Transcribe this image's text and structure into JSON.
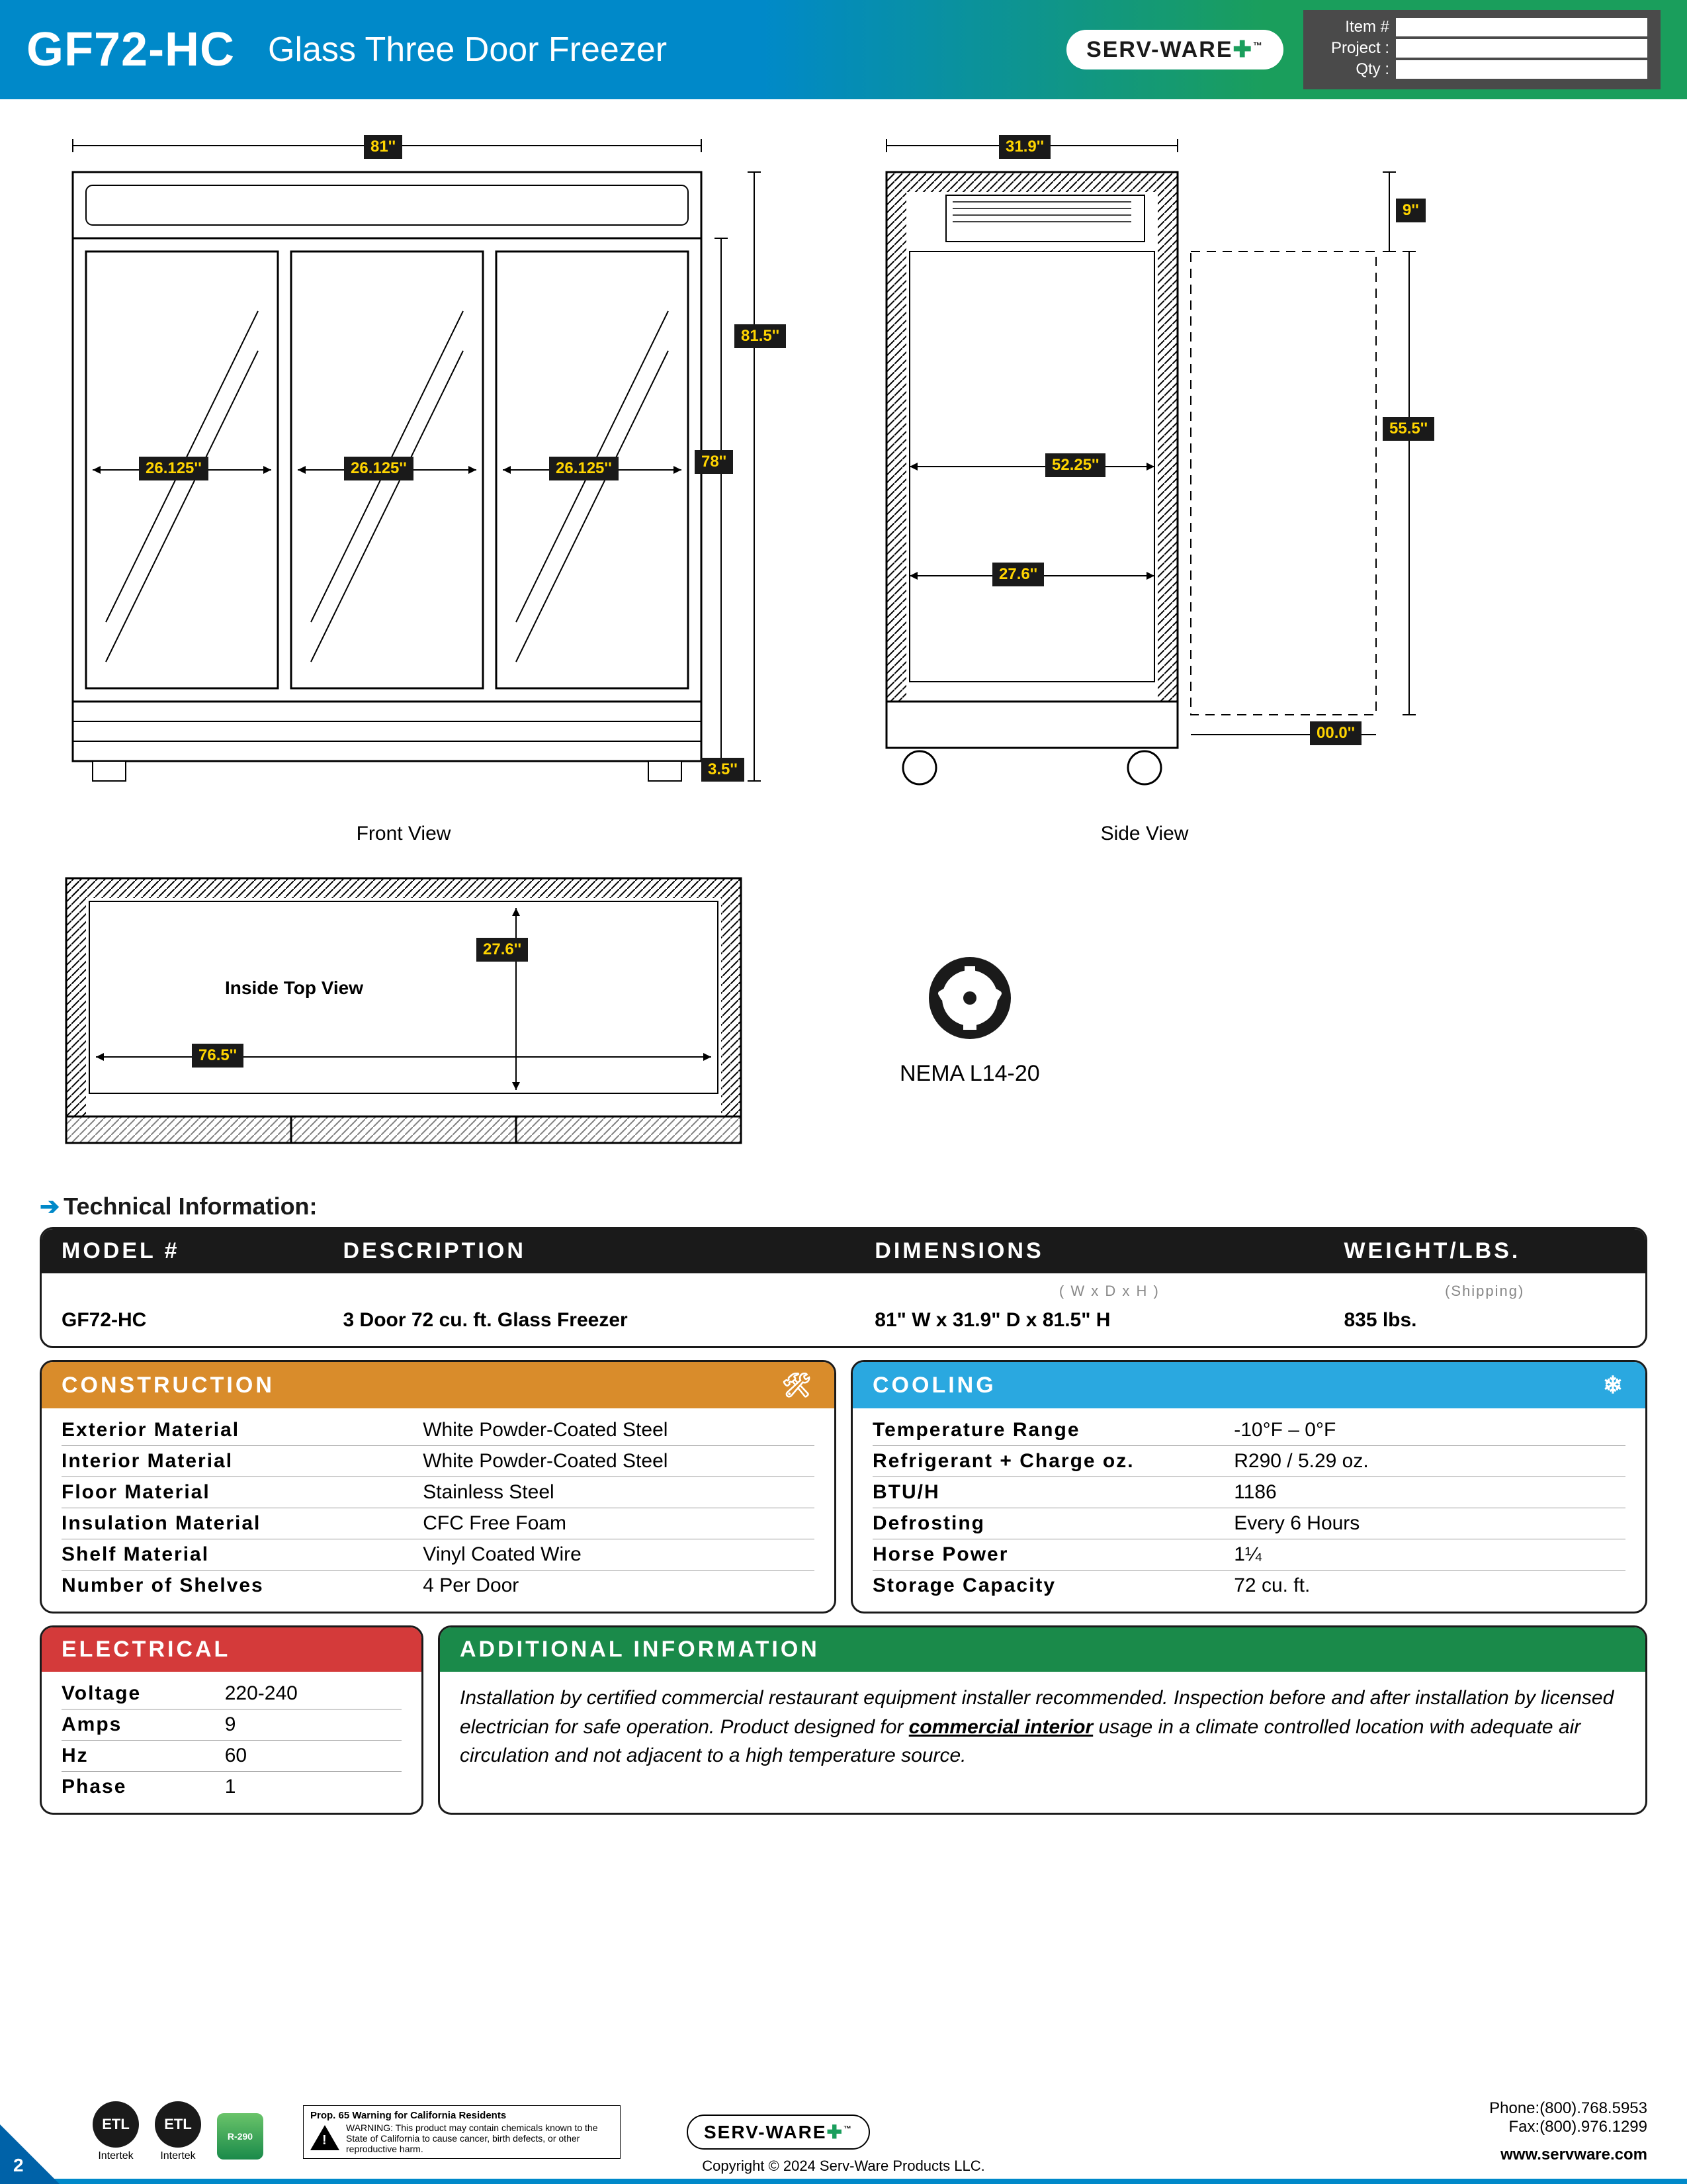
{
  "header": {
    "model_code": "GF72-HC",
    "model_title": "Glass Three Door Freezer",
    "brand": "SERV-WARE",
    "project_labels": {
      "item": "Item #",
      "project": "Project :",
      "qty": "Qty :"
    }
  },
  "diagrams": {
    "front": {
      "label": "Front View",
      "width": "81''",
      "height_outer": "81.5''",
      "height_inner": "78''",
      "foot": "3.5''",
      "door_width": "26.125''"
    },
    "side": {
      "label": "Side View",
      "depth": "31.9''",
      "top_gap": "9''",
      "clear_h": "55.5''",
      "inner_h": "52.25''",
      "inner_d": "27.6''",
      "bottom": "00.0''"
    },
    "top": {
      "label": "Inside Top View",
      "inner_w": "76.5''",
      "inner_d": "27.6''"
    },
    "nema": {
      "label": "NEMA L14-20"
    }
  },
  "tech_title": "Technical Information:",
  "model_table": {
    "headers": [
      "MODEL #",
      "DESCRIPTION",
      "DIMENSIONS",
      "WEIGHT/LBS."
    ],
    "subheaders": [
      "",
      "",
      "( W x D x H )",
      "(Shipping)"
    ],
    "row": [
      "GF72-HC",
      "3 Door 72 cu. ft. Glass Freezer",
      "81\" W x 31.9\" D x 81.5\" H",
      "835 lbs."
    ]
  },
  "construction": {
    "title": "CONSTRUCTION",
    "rows": [
      [
        "Exterior Material",
        "White Powder-Coated Steel"
      ],
      [
        "Interior Material",
        "White Powder-Coated Steel"
      ],
      [
        "Floor Material",
        "Stainless Steel"
      ],
      [
        "Insulation Material",
        "CFC Free Foam"
      ],
      [
        "Shelf Material",
        "Vinyl Coated Wire"
      ],
      [
        "Number of Shelves",
        "4 Per Door"
      ]
    ]
  },
  "cooling": {
    "title": "COOLING",
    "rows": [
      [
        "Temperature Range",
        "-10°F – 0°F"
      ],
      [
        "Refrigerant + Charge oz.",
        "R290 / 5.29 oz."
      ],
      [
        "BTU/H",
        "1186"
      ],
      [
        "Defrosting",
        "Every 6 Hours"
      ],
      [
        "Horse Power",
        "1¼"
      ],
      [
        "Storage Capacity",
        "72 cu. ft."
      ]
    ]
  },
  "electrical": {
    "title": "ELECTRICAL",
    "rows": [
      [
        "Voltage",
        "220-240"
      ],
      [
        "Amps",
        "9"
      ],
      [
        "Hz",
        "60"
      ],
      [
        "Phase",
        "1"
      ]
    ]
  },
  "additional": {
    "title": "ADDITIONAL INFORMATION",
    "text_pre": "Installation by certified commercial restaurant equipment installer recommended. Inspection before and after installation by licensed electrician for safe operation. Product designed for ",
    "text_ul": "commercial interior",
    "text_post": " usage in a climate controlled location with adequate air circulation and not adjacent to a high temperature source."
  },
  "footer": {
    "cert1": "Intertek",
    "cert2": "Intertek",
    "cert3": "R-290",
    "prop65_title": "Prop. 65 Warning for California Residents",
    "prop65_body": "WARNING: This product may contain chemicals known to the State of California to cause cancer, birth defects, or other reproductive harm.",
    "phone": "Phone:(800).768.5953",
    "fax": "Fax:(800).976.1299",
    "website": "www.servware.com",
    "copyright": "Copyright © 2024 Serv-Ware Products LLC.",
    "page": "2"
  },
  "colors": {
    "header_blue": "#0089c9",
    "header_green": "#1a9e5c",
    "dim_bg": "#1a1a1a",
    "dim_fg": "#ffd400",
    "orange": "#d98c2b",
    "cool_blue": "#2aa8e0",
    "red": "#d43a3a",
    "green": "#1a8a4a"
  }
}
